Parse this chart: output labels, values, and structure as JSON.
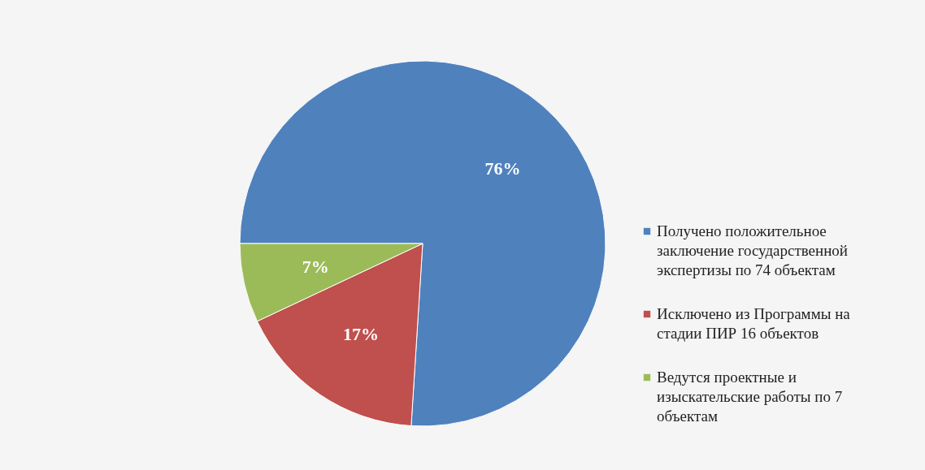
{
  "chart_data": {
    "type": "pie",
    "categories": [
      "Получено положительное заключение государственной экспертизы по 74 объектам",
      "Исключено из Программы на стадии ПИР 16 объектов",
      "Ведутся проектные и изыскательские работы по 7 объектам"
    ],
    "values": [
      76,
      17,
      7
    ],
    "colors": [
      "#4f81bd",
      "#c0504d",
      "#9bbb59"
    ],
    "value_labels": [
      "76%",
      "17%",
      "7%"
    ],
    "legend": "right"
  }
}
